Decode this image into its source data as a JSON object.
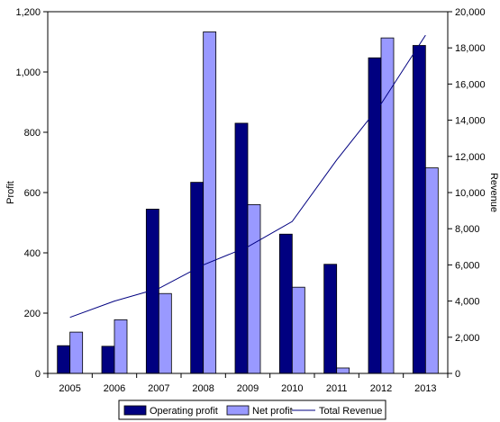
{
  "chart_data": {
    "type": "bar",
    "categories": [
      "2005",
      "2006",
      "2007",
      "2008",
      "2009",
      "2010",
      "2011",
      "2012",
      "2013"
    ],
    "series": [
      {
        "name": "Operating profit",
        "type": "bar",
        "axis": "left",
        "color": "#000080",
        "values": [
          92,
          90,
          545,
          634,
          830,
          462,
          362,
          1047,
          1088
        ]
      },
      {
        "name": "Net profit",
        "type": "bar",
        "axis": "left",
        "color": "#9999ff",
        "values": [
          137,
          178,
          265,
          1133,
          560,
          286,
          18,
          1113,
          682
        ]
      },
      {
        "name": "Total Revenue",
        "type": "line",
        "axis": "right",
        "color": "#000080",
        "values": [
          3100,
          4000,
          4700,
          6000,
          7000,
          8400,
          11800,
          14900,
          18700
        ]
      }
    ],
    "ylabel": "Profit",
    "y2label": "Revenue",
    "ylim": [
      0,
      1200
    ],
    "y2lim": [
      0,
      20000
    ],
    "yticks": [
      "0",
      "200",
      "400",
      "600",
      "800",
      "1,000",
      "1,200"
    ],
    "y2ticks": [
      "0",
      "2,000",
      "4,000",
      "6,000",
      "8,000",
      "10,000",
      "12,000",
      "14,000",
      "16,000",
      "18,000",
      "20,000"
    ],
    "grid": false,
    "legend": "bottom"
  }
}
